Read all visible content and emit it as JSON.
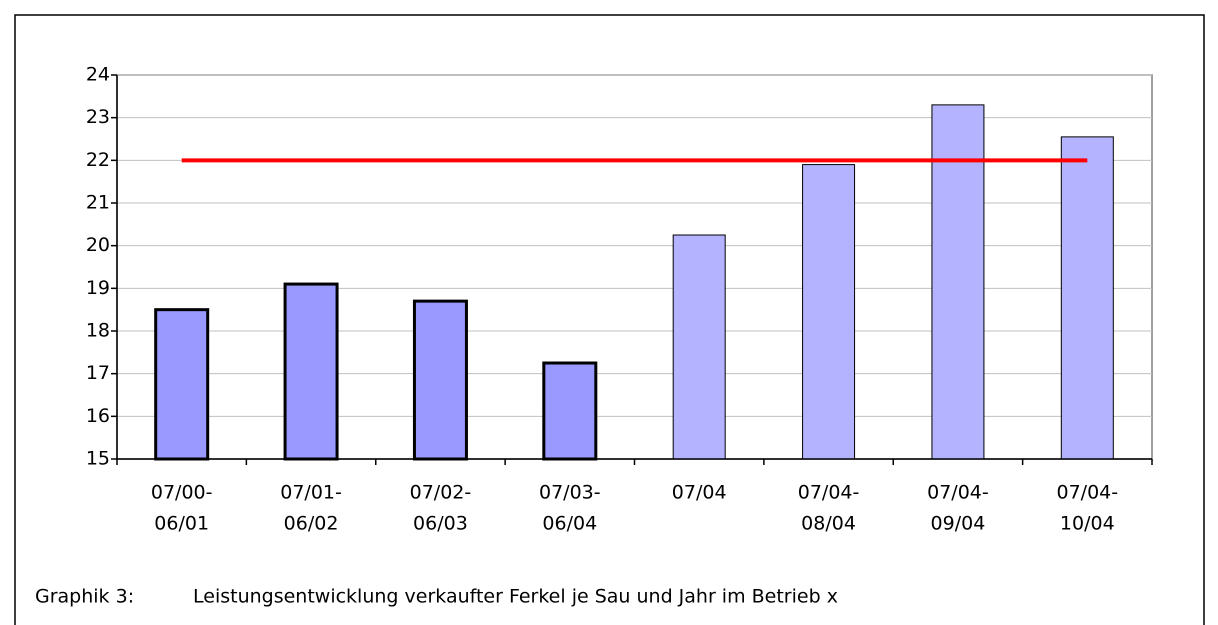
{
  "chart_data": {
    "type": "bar",
    "categories": [
      [
        "07/00-",
        "06/01"
      ],
      [
        "07/01-",
        "06/02"
      ],
      [
        "07/02-",
        "06/03"
      ],
      [
        "07/03-",
        "06/04"
      ],
      [
        "07/04"
      ],
      [
        "07/04-",
        "08/04"
      ],
      [
        "07/04-",
        "09/04"
      ],
      [
        "07/04-",
        "10/04"
      ]
    ],
    "values": [
      18.5,
      19.1,
      18.7,
      17.25,
      20.25,
      21.9,
      23.3,
      22.55
    ],
    "colors": [
      "#9999ff",
      "#9999ff",
      "#9999ff",
      "#9999ff",
      "#b3b3ff",
      "#b3b3ff",
      "#b3b3ff",
      "#b3b3ff"
    ],
    "edge_widths": [
      3,
      3,
      3,
      3,
      1,
      1,
      1,
      1
    ],
    "reference_line": {
      "value": 22,
      "color": "#ff0000"
    },
    "ylim": [
      15,
      24
    ],
    "yticks": [
      15,
      16,
      17,
      18,
      19,
      20,
      21,
      22,
      23,
      24
    ],
    "grid": true,
    "caption": {
      "label": "Graphik 3:",
      "text": "Leistungsentwicklung verkaufter Ferkel je Sau und Jahr im Betrieb x"
    }
  }
}
